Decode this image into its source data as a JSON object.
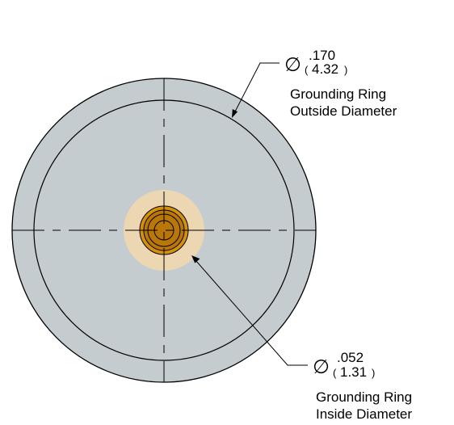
{
  "callouts": {
    "outer": {
      "symbol": "∅",
      "inch": ".170",
      "mm": "4.32",
      "paren_open": "(",
      "paren_close": ")",
      "label_line1": "Grounding Ring",
      "label_line2": "Outside Diameter"
    },
    "inner": {
      "symbol": "∅",
      "inch": ".052",
      "mm": "1.31",
      "paren_open": "(",
      "paren_close": ")",
      "label_line1": "Grounding Ring",
      "label_line2": "Inside Diameter"
    }
  },
  "colors": {
    "ring_fill": "#c5ccd0",
    "dielectric_fill": "#edd7b2",
    "pin_outer_fill": "#d2900d",
    "pin_inner_fill": "#b87708",
    "line": "#000000"
  }
}
